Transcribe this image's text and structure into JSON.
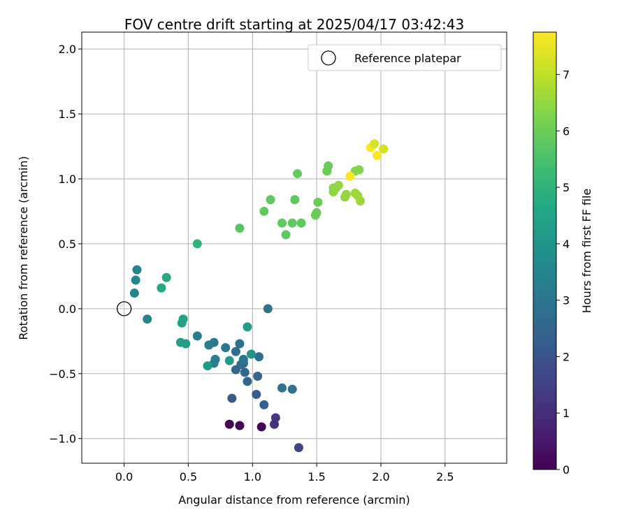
{
  "chart_data": {
    "type": "scatter",
    "title": "FOV centre drift starting at 2025/04/17 03:42:43",
    "xlabel": "Angular distance from reference (arcmin)",
    "ylabel": "Rotation from reference (arcmin)",
    "xlim": [
      -0.33,
      2.98
    ],
    "ylim": [
      -1.19,
      2.13
    ],
    "xticks": [
      0.0,
      0.5,
      1.0,
      1.5,
      2.0,
      2.5
    ],
    "xtick_labels": [
      "0.0",
      "0.5",
      "1.0",
      "1.5",
      "2.0",
      "2.5"
    ],
    "yticks": [
      -1.0,
      -0.5,
      0.0,
      0.5,
      1.0,
      1.5,
      2.0
    ],
    "ytick_labels": [
      "−1.0",
      "−0.5",
      "0.0",
      "0.5",
      "1.0",
      "1.5",
      "2.0"
    ],
    "grid": true,
    "colormap": "viridis",
    "colorbar": {
      "label": "Hours from first FF file",
      "range": [
        0,
        7.75
      ],
      "ticks": [
        0,
        1,
        2,
        3,
        4,
        5,
        6,
        7
      ],
      "tick_labels": [
        "0",
        "1",
        "2",
        "3",
        "4",
        "5",
        "6",
        "7"
      ]
    },
    "legend": {
      "position": "top-right",
      "entries": [
        "Reference platepar"
      ]
    },
    "reference_point": {
      "x": 0.0,
      "y": 0.0,
      "marker": "open-circle"
    },
    "points": [
      {
        "x": 0.82,
        "y": -0.89,
        "c": 0.0
      },
      {
        "x": 0.9,
        "y": -0.9,
        "c": 0.05
      },
      {
        "x": 1.07,
        "y": -0.91,
        "c": 0.1
      },
      {
        "x": 1.18,
        "y": -0.84,
        "c": 1.2
      },
      {
        "x": 1.17,
        "y": -0.89,
        "c": 1.1
      },
      {
        "x": 1.36,
        "y": -1.07,
        "c": 1.5
      },
      {
        "x": 0.84,
        "y": -0.69,
        "c": 2.2
      },
      {
        "x": 1.03,
        "y": -0.66,
        "c": 2.3
      },
      {
        "x": 1.09,
        "y": -0.74,
        "c": 2.4
      },
      {
        "x": 1.04,
        "y": -0.52,
        "c": 2.5
      },
      {
        "x": 0.96,
        "y": -0.56,
        "c": 2.5
      },
      {
        "x": 0.87,
        "y": -0.47,
        "c": 2.6
      },
      {
        "x": 0.94,
        "y": -0.49,
        "c": 2.6
      },
      {
        "x": 0.91,
        "y": -0.43,
        "c": 2.7
      },
      {
        "x": 0.93,
        "y": -0.42,
        "c": 2.7
      },
      {
        "x": 0.87,
        "y": -0.33,
        "c": 2.8
      },
      {
        "x": 0.9,
        "y": -0.27,
        "c": 2.8
      },
      {
        "x": 1.05,
        "y": -0.37,
        "c": 2.8
      },
      {
        "x": 1.23,
        "y": -0.61,
        "c": 2.9
      },
      {
        "x": 1.31,
        "y": -0.62,
        "c": 2.9
      },
      {
        "x": 1.12,
        "y": 0.0,
        "c": 3.0
      },
      {
        "x": 0.93,
        "y": -0.39,
        "c": 3.0
      },
      {
        "x": 0.79,
        "y": -0.3,
        "c": 3.1
      },
      {
        "x": 0.7,
        "y": -0.26,
        "c": 3.1
      },
      {
        "x": 0.66,
        "y": -0.28,
        "c": 3.2
      },
      {
        "x": 0.71,
        "y": -0.39,
        "c": 3.3
      },
      {
        "x": 0.7,
        "y": -0.42,
        "c": 3.3
      },
      {
        "x": 0.57,
        "y": -0.21,
        "c": 3.3
      },
      {
        "x": 0.18,
        "y": -0.08,
        "c": 3.4
      },
      {
        "x": 0.08,
        "y": 0.12,
        "c": 3.5
      },
      {
        "x": 0.09,
        "y": 0.22,
        "c": 3.5
      },
      {
        "x": 0.1,
        "y": 0.3,
        "c": 3.5
      },
      {
        "x": 0.82,
        "y": -0.4,
        "c": 4.2
      },
      {
        "x": 0.99,
        "y": -0.35,
        "c": 4.0
      },
      {
        "x": 0.96,
        "y": -0.14,
        "c": 4.3
      },
      {
        "x": 0.65,
        "y": -0.44,
        "c": 4.2
      },
      {
        "x": 0.44,
        "y": -0.26,
        "c": 4.3
      },
      {
        "x": 0.48,
        "y": -0.27,
        "c": 4.3
      },
      {
        "x": 0.45,
        "y": -0.11,
        "c": 4.4
      },
      {
        "x": 0.46,
        "y": -0.08,
        "c": 4.4
      },
      {
        "x": 0.29,
        "y": 0.16,
        "c": 4.7
      },
      {
        "x": 0.33,
        "y": 0.24,
        "c": 4.7
      },
      {
        "x": 0.57,
        "y": 0.5,
        "c": 5.0
      },
      {
        "x": 0.9,
        "y": 0.62,
        "c": 5.7
      },
      {
        "x": 1.09,
        "y": 0.75,
        "c": 5.8
      },
      {
        "x": 1.14,
        "y": 0.84,
        "c": 5.8
      },
      {
        "x": 1.23,
        "y": 0.66,
        "c": 5.8
      },
      {
        "x": 1.26,
        "y": 0.57,
        "c": 5.8
      },
      {
        "x": 1.31,
        "y": 0.66,
        "c": 5.8
      },
      {
        "x": 1.38,
        "y": 0.66,
        "c": 5.8
      },
      {
        "x": 1.33,
        "y": 0.84,
        "c": 5.8
      },
      {
        "x": 1.35,
        "y": 1.04,
        "c": 5.9
      },
      {
        "x": 1.49,
        "y": 0.72,
        "c": 6.0
      },
      {
        "x": 1.5,
        "y": 0.74,
        "c": 6.0
      },
      {
        "x": 1.51,
        "y": 0.82,
        "c": 6.0
      },
      {
        "x": 1.58,
        "y": 1.06,
        "c": 6.0
      },
      {
        "x": 1.59,
        "y": 1.1,
        "c": 6.0
      },
      {
        "x": 1.63,
        "y": 0.9,
        "c": 6.4
      },
      {
        "x": 1.63,
        "y": 0.93,
        "c": 6.4
      },
      {
        "x": 1.65,
        "y": 0.93,
        "c": 6.5
      },
      {
        "x": 1.67,
        "y": 0.95,
        "c": 6.5
      },
      {
        "x": 1.72,
        "y": 0.86,
        "c": 6.5
      },
      {
        "x": 1.73,
        "y": 0.88,
        "c": 6.5
      },
      {
        "x": 1.8,
        "y": 1.06,
        "c": 6.3
      },
      {
        "x": 1.83,
        "y": 1.07,
        "c": 6.3
      },
      {
        "x": 1.8,
        "y": 0.89,
        "c": 6.6
      },
      {
        "x": 1.82,
        "y": 0.87,
        "c": 6.6
      },
      {
        "x": 1.84,
        "y": 0.83,
        "c": 6.6
      },
      {
        "x": 1.76,
        "y": 1.02,
        "c": 7.7
      },
      {
        "x": 1.92,
        "y": 1.24,
        "c": 7.7
      },
      {
        "x": 1.95,
        "y": 1.27,
        "c": 7.3
      },
      {
        "x": 1.97,
        "y": 1.18,
        "c": 7.7
      },
      {
        "x": 2.02,
        "y": 1.23,
        "c": 7.2
      }
    ]
  }
}
